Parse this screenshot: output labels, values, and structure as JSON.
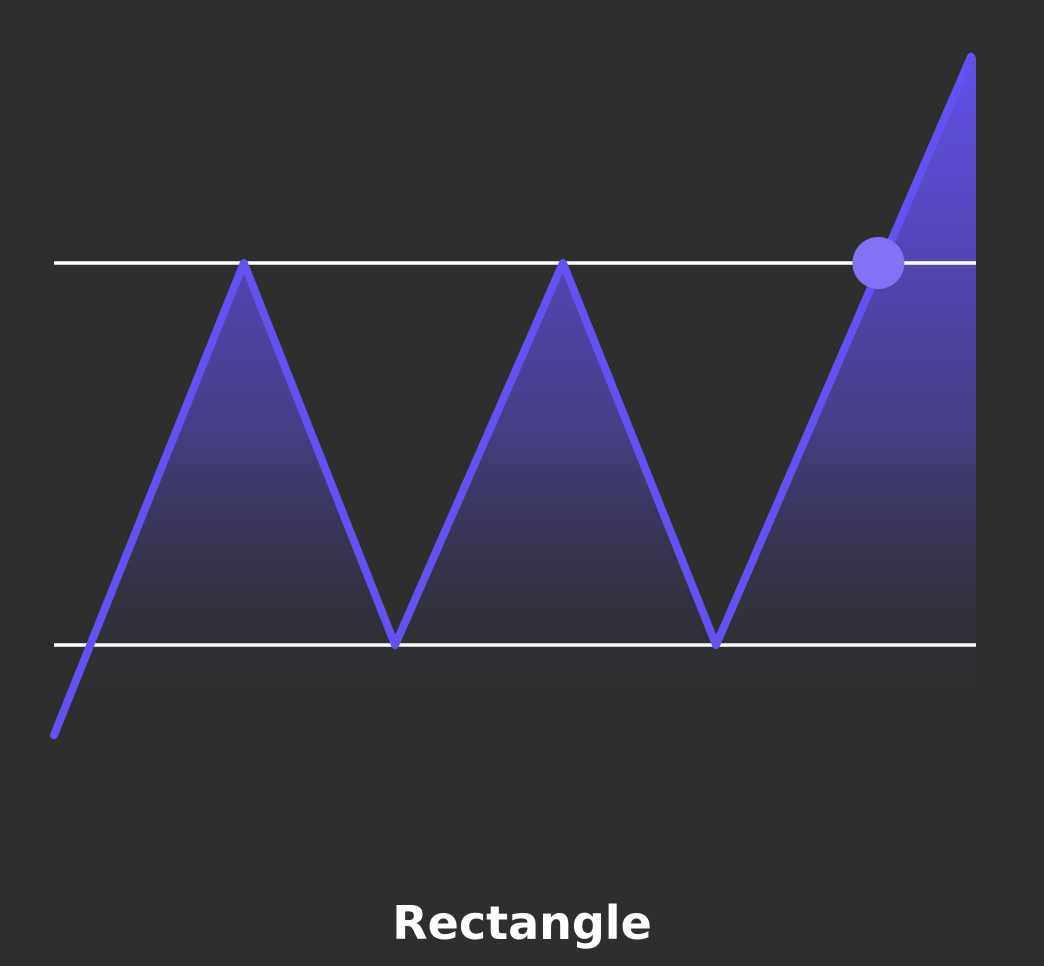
{
  "caption": "Rectangle",
  "colors": {
    "background": "#2e2e2e",
    "price_line": "#6351f2",
    "level_lines": "#ffffff",
    "breakout_marker": "#8273f5",
    "fill_top": "#6351f2",
    "fill_bottom": "#2e2e2e"
  },
  "pattern": {
    "type": "rectangle",
    "resistance_level": 1.0,
    "support_level": 0.0,
    "price_path": [
      {
        "t": 0.0,
        "price": -0.236
      },
      {
        "t": 0.207,
        "price": 1.0
      },
      {
        "t": 0.372,
        "price": 0.0
      },
      {
        "t": 0.555,
        "price": 1.0
      },
      {
        "t": 0.722,
        "price": 0.0
      },
      {
        "t": 1.0,
        "price": 1.54
      }
    ],
    "breakout": {
      "t": 0.899,
      "price": 1.0
    }
  }
}
